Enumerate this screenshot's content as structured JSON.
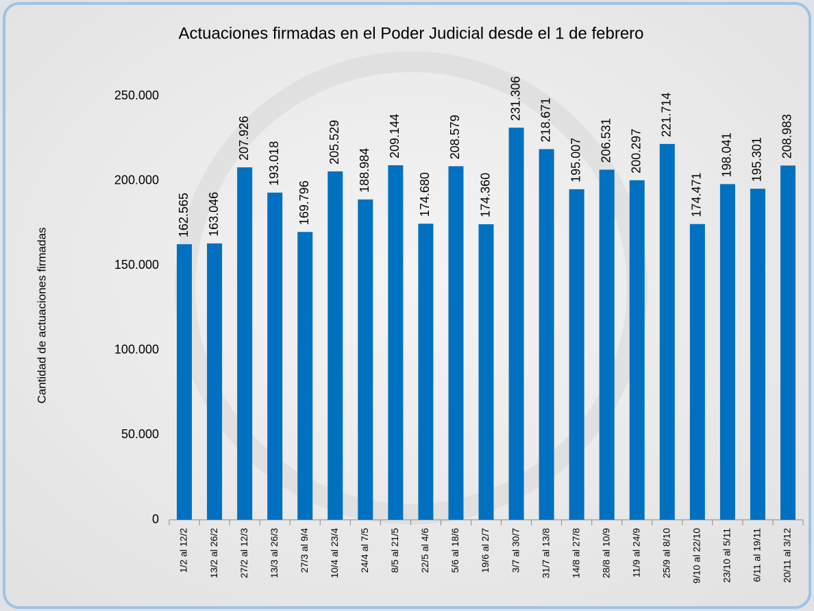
{
  "chart_data": {
    "type": "bar",
    "title": "Actuaciones firmadas en el Poder Judicial desde el 1 de febrero",
    "y_label": "Cantidad de actuaciones firmadas",
    "categories": [
      "1/2 al 12/2",
      "13/2 al 26/2",
      "27/2 al 12/3",
      "13/3 al 26/3",
      "27/3 al 9/4",
      "10/4 al 23/4",
      "24/4 al 7/5",
      "8/5 al 21/5",
      "22/5 al 4/6",
      "5/6 al 18/6",
      "19/6 al 2/7",
      "3/7 al 30/7",
      "31/7 al 13/8",
      "14/8 al 27/8",
      "28/8 al 10/9",
      "11/9 al 24/9",
      "25/9 al 8/10",
      "9/10 al 22/10",
      "23/10 al 5/11",
      "6/11 al 19/11",
      "20/11 al 3/12"
    ],
    "values": [
      162565,
      163046,
      207926,
      193018,
      169796,
      205529,
      188984,
      209144,
      174680,
      208579,
      174360,
      231306,
      218671,
      195007,
      206531,
      200297,
      221714,
      174471,
      198041,
      195301,
      208983
    ],
    "value_labels": [
      "162.565",
      "163.046",
      "207.926",
      "193.018",
      "169.796",
      "205.529",
      "188.984",
      "209.144",
      "174.680",
      "208.579",
      "174.360",
      "231.306",
      "218.671",
      "195.007",
      "206.531",
      "200.297",
      "221.714",
      "174.471",
      "198.041",
      "195.301",
      "208.983"
    ],
    "color": "#0070c0",
    "ylim": [
      0,
      250000
    ],
    "yticks": [
      0,
      {
        "value": 50000,
        "label": "50.000"
      },
      {
        "value": 100000,
        "label": "100.000"
      },
      {
        "value": 150000,
        "label": "150.000"
      },
      {
        "value": 200000,
        "label": "200.000"
      },
      {
        "value": 250000,
        "label": "250.000"
      }
    ],
    "grid": false
  }
}
